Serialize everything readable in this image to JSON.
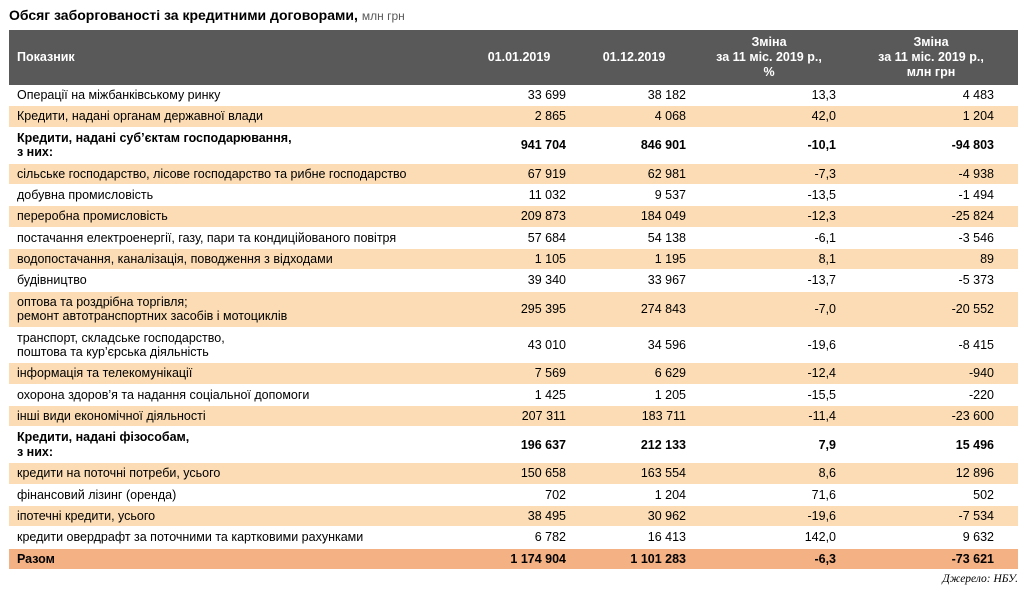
{
  "title": {
    "main": "Обсяг заборгованості за кредитними договорами,",
    "unit": "млн грн"
  },
  "table": {
    "columns": [
      "Показник",
      "01.01.2019",
      "01.12.2019",
      "Зміна\nза 11 міс. 2019 р.,\n%",
      "Зміна\nза 11 міс. 2019 р.,\nмлн грн"
    ],
    "rows": [
      {
        "name": "Операції на міжбанківському ринку",
        "values": [
          "33 699",
          "38 182",
          "13,3",
          "4 483"
        ],
        "style": "white"
      },
      {
        "name": "Кредити, надані органам державної влади",
        "values": [
          "2 865",
          "4 068",
          "42,0",
          "1 204"
        ],
        "style": "peach"
      },
      {
        "name": "Кредити, надані суб’єктам господарювання,\nз них:",
        "values": [
          "941 704",
          "846 901",
          "-10,1",
          "-94 803"
        ],
        "style": "bold"
      },
      {
        "name": "сільське господарство, лісове господарство та рибне господарство",
        "values": [
          "67 919",
          "62 981",
          "-7,3",
          "-4 938"
        ],
        "style": "peach"
      },
      {
        "name": "добувна промисловість",
        "values": [
          "11 032",
          "9 537",
          "-13,5",
          "-1 494"
        ],
        "style": "white"
      },
      {
        "name": "переробна промисловість",
        "values": [
          "209 873",
          "184 049",
          "-12,3",
          "-25 824"
        ],
        "style": "peach"
      },
      {
        "name": "постачання електроенергії, газу, пари та кондиційованого повітря",
        "values": [
          "57 684",
          "54 138",
          "-6,1",
          "-3 546"
        ],
        "style": "white"
      },
      {
        "name": "водопостачання, каналізація, поводження з відходами",
        "values": [
          "1 105",
          "1 195",
          "8,1",
          "89"
        ],
        "style": "peach"
      },
      {
        "name": "будівництво",
        "values": [
          "39 340",
          "33 967",
          "-13,7",
          "-5 373"
        ],
        "style": "white"
      },
      {
        "name": "оптова та роздрібна торгівля;\nремонт автотранспортних засобів і мотоциклів",
        "values": [
          "295 395",
          "274 843",
          "-7,0",
          "-20 552"
        ],
        "style": "peach"
      },
      {
        "name": "транспорт, складське господарство,\nпоштова та кур’єрська діяльність",
        "values": [
          "43 010",
          "34 596",
          "-19,6",
          "-8 415"
        ],
        "style": "white"
      },
      {
        "name": "інформація та телекомунікації",
        "values": [
          "7 569",
          "6 629",
          "-12,4",
          "-940"
        ],
        "style": "peach"
      },
      {
        "name": "охорона здоров’я та надання соціальної допомоги",
        "values": [
          "1 425",
          "1 205",
          "-15,5",
          "-220"
        ],
        "style": "white"
      },
      {
        "name": "інші види економічної діяльності",
        "values": [
          "207 311",
          "183 711",
          "-11,4",
          "-23 600"
        ],
        "style": "peach"
      },
      {
        "name": "Кредити, надані фізособам,\nз них:",
        "values": [
          "196 637",
          "212 133",
          "7,9",
          "15 496"
        ],
        "style": "bold"
      },
      {
        "name": "кредити на поточні потреби, усього",
        "values": [
          "150 658",
          "163 554",
          "8,6",
          "12 896"
        ],
        "style": "peach"
      },
      {
        "name": "фінансовий лізинг (оренда)",
        "values": [
          "702",
          "1 204",
          "71,6",
          "502"
        ],
        "style": "white"
      },
      {
        "name": "іпотечні кредити, усього",
        "values": [
          "38 495",
          "30 962",
          "-19,6",
          "-7 534"
        ],
        "style": "peach"
      },
      {
        "name": "кредити овердрафт за поточними та картковими рахунками",
        "values": [
          "6 782",
          "16 413",
          "142,0",
          "9 632"
        ],
        "style": "white"
      },
      {
        "name": "Разом",
        "values": [
          "1 174 904",
          "1 101 283",
          "-6,3",
          "-73 621"
        ],
        "style": "total"
      }
    ]
  },
  "source": "Джерело: НБУ.",
  "colors": {
    "header-bg": "#595959",
    "row-peach": "#FBDCB4",
    "row-total": "#F4B183",
    "title-unit": "#595959"
  }
}
